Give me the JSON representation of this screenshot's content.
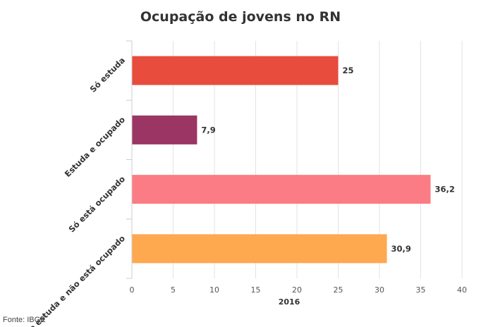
{
  "chart_data": {
    "type": "bar",
    "orientation": "horizontal",
    "title": "Ocupação de jovens no RN",
    "categories": [
      "Só estuda",
      "Estuda e ocupado",
      "Só está ocupado",
      "Não estuda e não está ocupado"
    ],
    "series": [
      {
        "name": "2016",
        "values": [
          25,
          7.9,
          36.2,
          30.9
        ],
        "data_labels": [
          "25",
          "7,9",
          "36,2",
          "30,9"
        ],
        "colors": [
          "#e84c3d",
          "#9b3564",
          "#fb7c84",
          "#fea850"
        ]
      }
    ],
    "xlabel": "2016",
    "ylabel": "",
    "xlim": [
      0,
      40
    ],
    "xticks": [
      0,
      5,
      10,
      15,
      20,
      25,
      30,
      35,
      40
    ],
    "grid": true,
    "legend": "none"
  },
  "source": "Fonte: IBGE"
}
